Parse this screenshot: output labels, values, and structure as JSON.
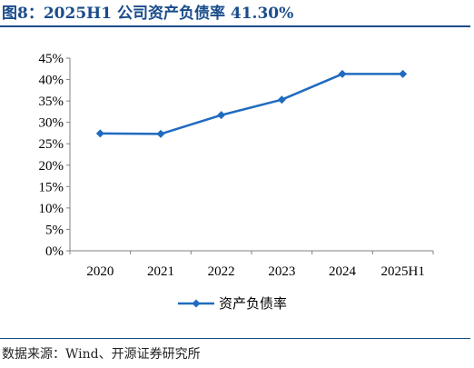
{
  "figure": {
    "title": "图8：2025H1 公司资产负债率 41.30%",
    "source": "数据来源：Wind、开源证券研究所"
  },
  "colors": {
    "accent": "#1a4c8b",
    "series": "#1f6bbf",
    "axis": "#808080"
  },
  "chart_data": {
    "type": "line",
    "categories": [
      "2020",
      "2021",
      "2022",
      "2023",
      "2024",
      "2025H1"
    ],
    "series": [
      {
        "name": "资产负债率",
        "values": [
          27.4,
          27.3,
          31.7,
          35.3,
          41.3,
          41.3
        ],
        "marker": "diamond"
      }
    ],
    "ylim": [
      0,
      45
    ],
    "yticks": [
      0,
      5,
      10,
      15,
      20,
      25,
      30,
      35,
      40,
      45
    ],
    "ytick_labels": [
      "0%",
      "5%",
      "10%",
      "15%",
      "20%",
      "25%",
      "30%",
      "35%",
      "40%",
      "45%"
    ],
    "grid": false,
    "legend": "bottom-center",
    "xlabel": "",
    "ylabel": ""
  }
}
